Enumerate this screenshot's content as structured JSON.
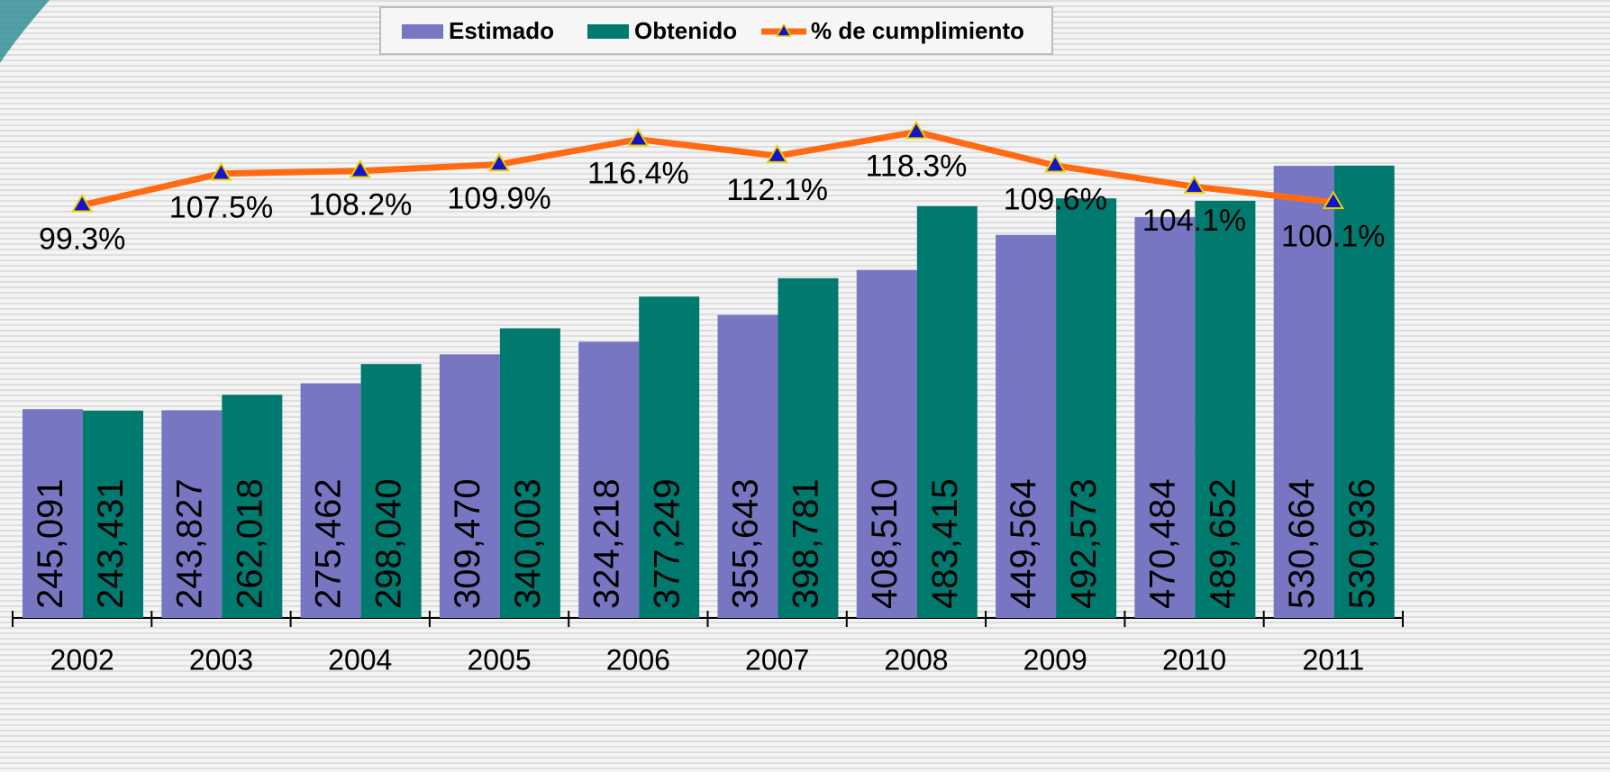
{
  "chart_data": {
    "type": "bar",
    "categories": [
      "2002",
      "2003",
      "2004",
      "2005",
      "2006",
      "2007",
      "2008",
      "2009",
      "2010",
      "2011"
    ],
    "series": [
      {
        "name": "Estimado",
        "type": "bar",
        "color": "#7676c2",
        "values": [
          245091,
          243827,
          275462,
          309470,
          324218,
          355643,
          408510,
          449564,
          470484,
          530664
        ],
        "value_labels": [
          "245,091",
          "243,827",
          "275,462",
          "309,470",
          "324,218",
          "355,643",
          "408,510",
          "449,564",
          "470,484",
          "530,664"
        ]
      },
      {
        "name": "Obtenido",
        "type": "bar",
        "color": "#00796f",
        "values": [
          243431,
          262018,
          298040,
          340003,
          377249,
          398781,
          483415,
          492573,
          489652,
          530936
        ],
        "value_labels": [
          "243,431",
          "262,018",
          "298,040",
          "340,003",
          "377,249",
          "398,781",
          "483,415",
          "492,573",
          "489,652",
          "530,936"
        ]
      },
      {
        "name": "% de cumplimiento",
        "type": "line",
        "axis": "y2",
        "color": "#ff6a13",
        "marker_color": "#1414c8",
        "values": [
          99.3,
          107.5,
          108.2,
          109.9,
          116.4,
          112.1,
          118.3,
          109.6,
          104.1,
          100.1
        ],
        "value_labels": [
          "99.3%",
          "107.5%",
          "108.2%",
          "109.9%",
          "116.4%",
          "112.1%",
          "118.3%",
          "109.6%",
          "104.1%",
          "100.1%"
        ]
      }
    ],
    "ylim": [
      0,
      700000
    ],
    "y2lim": [
      -8,
      147
    ],
    "legend": "top"
  }
}
